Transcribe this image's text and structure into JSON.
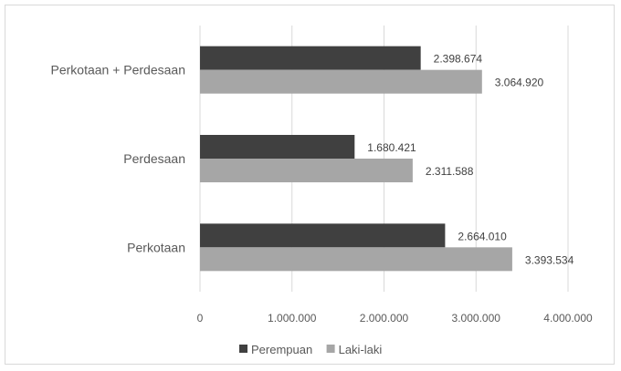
{
  "chart_data": {
    "type": "bar",
    "orientation": "horizontal",
    "categories": [
      "Perkotaan + Perdesaan",
      "Perdesaan",
      "Perkotaan"
    ],
    "series": [
      {
        "name": "Perempuan",
        "color": "#404040",
        "values": [
          2398674,
          1680421,
          2664010
        ],
        "labels": [
          "2.398.674",
          "1.680.421",
          "2.664.010"
        ]
      },
      {
        "name": "Laki-laki",
        "color": "#a6a6a6",
        "values": [
          3064920,
          2311588,
          3393534
        ],
        "labels": [
          "3.064.920",
          "2.311.588",
          "3.393.534"
        ]
      }
    ],
    "xlim": [
      0,
      4000000
    ],
    "x_ticks": [
      0,
      1000000,
      2000000,
      3000000,
      4000000
    ],
    "x_tick_labels": [
      "0",
      "1.000.000",
      "2.000.000",
      "3.000.000",
      "4.000.000"
    ],
    "grid": "vertical",
    "legend_position": "bottom"
  }
}
